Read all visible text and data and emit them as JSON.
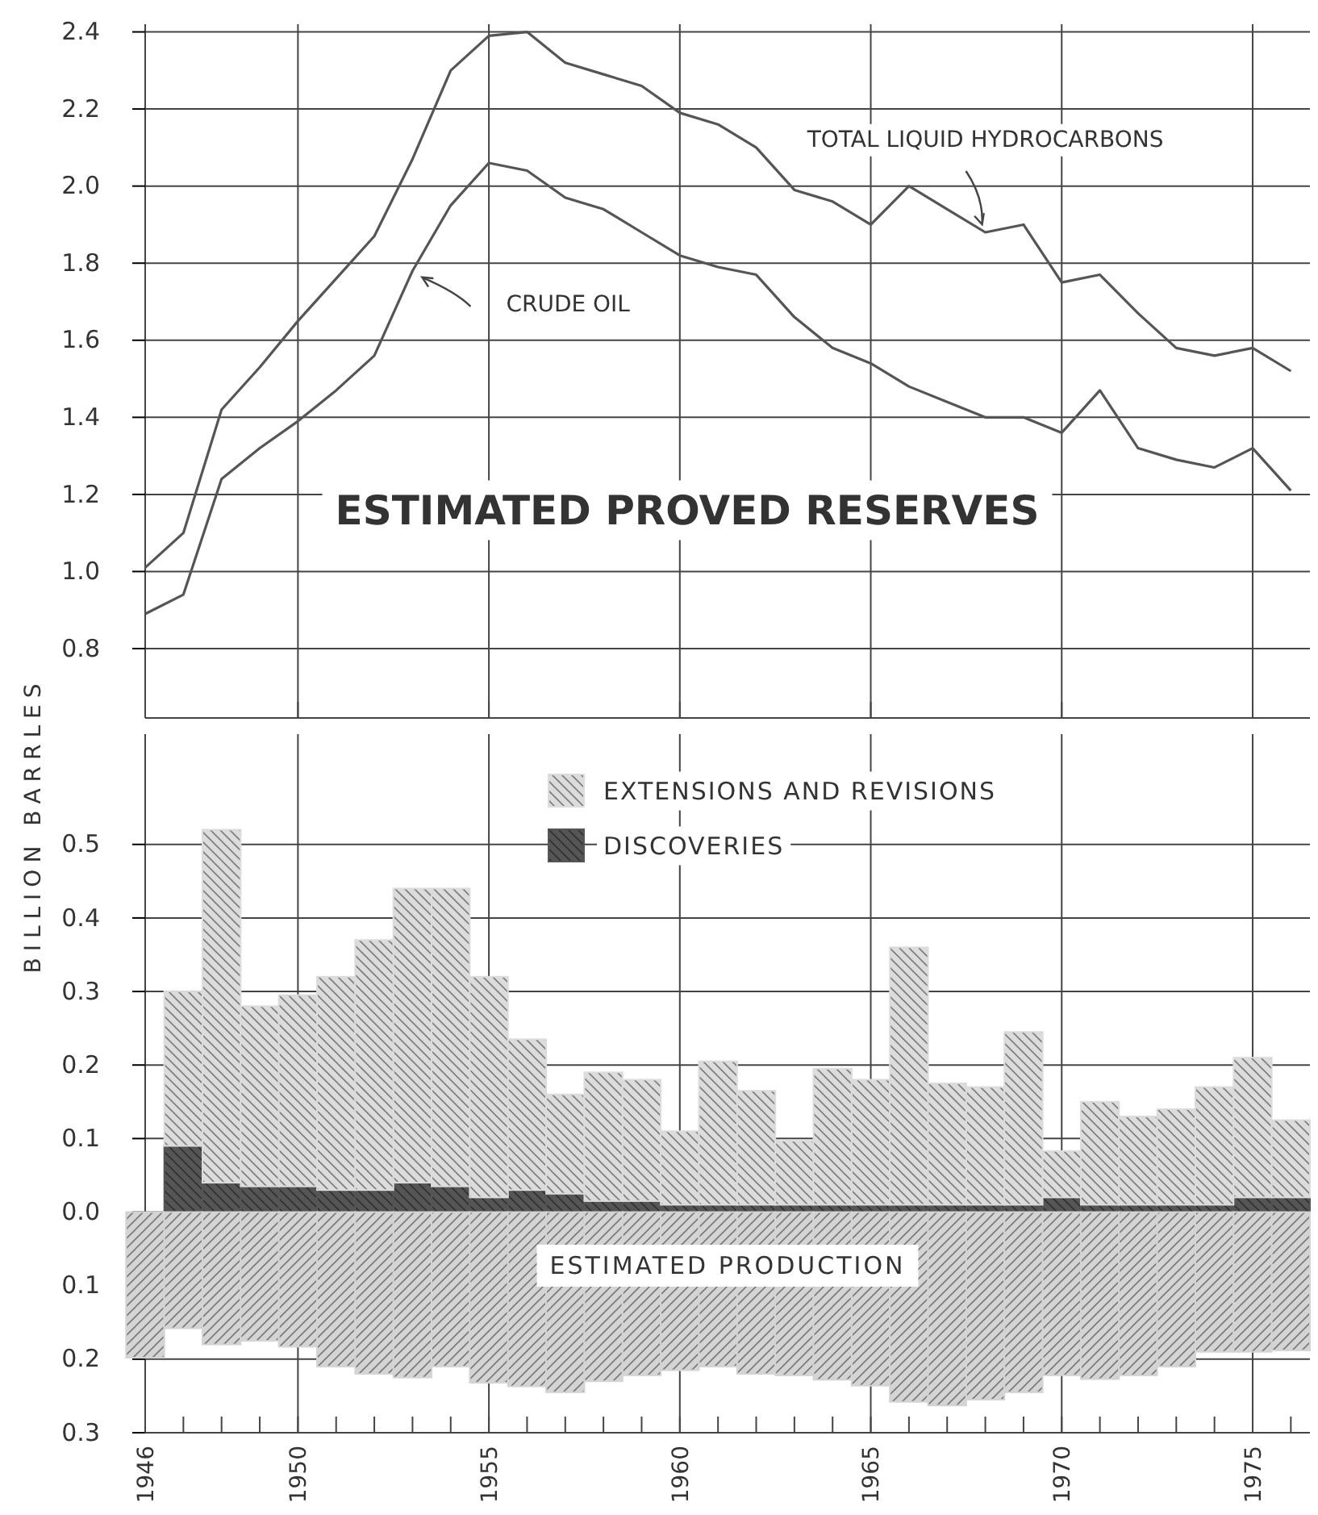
{
  "chart_data": [
    {
      "type": "line",
      "title": "ESTIMATED PROVED RESERVES",
      "ylabel": "BILLION BARRLES",
      "x": [
        1946,
        1947,
        1948,
        1949,
        1950,
        1951,
        1952,
        1953,
        1954,
        1955,
        1956,
        1957,
        1958,
        1959,
        1960,
        1961,
        1962,
        1963,
        1964,
        1965,
        1966,
        1967,
        1968,
        1969,
        1970,
        1971,
        1972,
        1973,
        1974,
        1975,
        1976
      ],
      "series": [
        {
          "name": "TOTAL LIQUID HYDROCARBONS",
          "color": "#555555",
          "values": [
            1.01,
            1.1,
            1.42,
            1.53,
            1.65,
            1.76,
            1.87,
            2.07,
            2.3,
            2.39,
            2.4,
            2.32,
            2.29,
            2.26,
            2.19,
            2.16,
            2.1,
            1.99,
            1.96,
            1.9,
            2.0,
            1.94,
            1.88,
            1.9,
            1.75,
            1.77,
            1.67,
            1.58,
            1.56,
            1.58,
            1.52
          ]
        },
        {
          "name": "CRUDE OIL",
          "color": "#555555",
          "values": [
            0.89,
            0.94,
            1.24,
            1.32,
            1.39,
            1.47,
            1.56,
            1.78,
            1.95,
            2.06,
            2.04,
            1.97,
            1.94,
            1.88,
            1.82,
            1.79,
            1.77,
            1.66,
            1.58,
            1.54,
            1.48,
            1.44,
            1.4,
            1.4,
            1.36,
            1.47,
            1.32,
            1.29,
            1.27,
            1.32,
            1.21
          ]
        }
      ],
      "xlim": [
        1946,
        1976.5
      ],
      "ylim": [
        0.62,
        2.42
      ],
      "xticks": [
        1946,
        1950,
        1955,
        1960,
        1965,
        1970,
        1975
      ],
      "yticks": [
        {
          "value": 0.8,
          "label": "0.8"
        },
        {
          "value": 1,
          "label": "1.0"
        },
        {
          "value": 1.2,
          "label": "1.2"
        },
        {
          "value": 1.4,
          "label": "1.4"
        },
        {
          "value": 1.6,
          "label": "1.6"
        },
        {
          "value": 1.8,
          "label": "1.8"
        },
        {
          "value": 2,
          "label": "2.0"
        },
        {
          "value": 2.2,
          "label": "2.2"
        },
        {
          "value": 2.4,
          "label": "2.4"
        }
      ],
      "grid": true,
      "tick_labels": "y"
    },
    {
      "type": "bar",
      "stacked": true,
      "legend": "top",
      "grid": true,
      "series": [
        {
          "name": "DISCOVERIES",
          "color": "#555555",
          "x": [
            1947,
            1948,
            1949,
            1950,
            1951,
            1952,
            1953,
            1954,
            1955,
            1956,
            1957,
            1958,
            1959,
            1960,
            1961,
            1962,
            1963,
            1964,
            1965,
            1966,
            1967,
            1968,
            1969,
            1970,
            1971,
            1972,
            1973,
            1974,
            1975,
            1976
          ],
          "values": [
            0.09,
            0.04,
            0.035,
            0.035,
            0.03,
            0.03,
            0.04,
            0.035,
            0.02,
            0.03,
            0.025,
            0.015,
            0.015,
            0.01,
            0.01,
            0.01,
            0.01,
            0.01,
            0.01,
            0.01,
            0.01,
            0.01,
            0.01,
            0.02,
            0.01,
            0.01,
            0.01,
            0.01,
            0.02,
            0.02
          ]
        },
        {
          "name": "EXTENSIONS AND REVISIONS",
          "color": "#dcdcdc",
          "x": [
            1947,
            1948,
            1949,
            1950,
            1951,
            1952,
            1953,
            1954,
            1955,
            1956,
            1957,
            1958,
            1959,
            1960,
            1961,
            1962,
            1963,
            1964,
            1965,
            1966,
            1967,
            1968,
            1969,
            1970,
            1971,
            1972,
            1973,
            1974,
            1975,
            1976
          ],
          "values": [
            0.21,
            0.48,
            0.245,
            0.26,
            0.29,
            0.34,
            0.4,
            0.405,
            0.3,
            0.205,
            0.135,
            0.175,
            0.165,
            0.1,
            0.195,
            0.155,
            0.087,
            0.185,
            0.17,
            0.35,
            0.165,
            0.16,
            0.235,
            0.063,
            0.14,
            0.12,
            0.13,
            0.16,
            0.19,
            0.105
          ]
        },
        {
          "name": "ESTIMATED PRODUCTION",
          "color": "#d4d4d4",
          "x": [
            1946,
            1947,
            1948,
            1949,
            1950,
            1951,
            1952,
            1953,
            1954,
            1955,
            1956,
            1957,
            1958,
            1959,
            1960,
            1961,
            1962,
            1963,
            1964,
            1965,
            1966,
            1967,
            1968,
            1969,
            1970,
            1971,
            1972,
            1973,
            1974,
            1975,
            1976
          ],
          "values": [
            -0.198,
            -0.158,
            -0.18,
            -0.175,
            -0.183,
            -0.21,
            -0.22,
            -0.225,
            -0.21,
            -0.232,
            -0.237,
            -0.245,
            -0.23,
            -0.222,
            -0.215,
            -0.21,
            -0.22,
            -0.222,
            -0.228,
            -0.236,
            -0.258,
            -0.263,
            -0.255,
            -0.245,
            -0.222,
            -0.227,
            -0.222,
            -0.21,
            -0.19,
            -0.19,
            -0.188
          ]
        }
      ],
      "xlim": [
        1946,
        1976.5
      ],
      "ylim": [
        -0.3,
        0.65
      ],
      "xticks": [
        1946,
        {
          "value": 1947,
          "label": null
        },
        {
          "value": 1948,
          "label": null
        },
        {
          "value": 1949,
          "label": null
        },
        1950,
        {
          "value": 1951,
          "label": null
        },
        {
          "value": 1952,
          "label": null
        },
        {
          "value": 1953,
          "label": null
        },
        {
          "value": 1954,
          "label": null
        },
        1955,
        {
          "value": 1956,
          "label": null
        },
        {
          "value": 1957,
          "label": null
        },
        {
          "value": 1958,
          "label": null
        },
        {
          "value": 1959,
          "label": null
        },
        1960,
        {
          "value": 1961,
          "label": null
        },
        {
          "value": 1962,
          "label": null
        },
        {
          "value": 1963,
          "label": null
        },
        {
          "value": 1964,
          "label": null
        },
        1965,
        {
          "value": 1966,
          "label": null
        },
        {
          "value": 1967,
          "label": null
        },
        {
          "value": 1968,
          "label": null
        },
        {
          "value": 1969,
          "label": null
        },
        1970,
        {
          "value": 1971,
          "label": null
        },
        {
          "value": 1972,
          "label": null
        },
        {
          "value": 1973,
          "label": null
        },
        {
          "value": 1974,
          "label": null
        },
        1975,
        {
          "value": 1976,
          "label": null
        }
      ],
      "yticks": [
        {
          "value": -0.3,
          "label": "0.3"
        },
        {
          "value": -0.2,
          "label": "0.2"
        },
        {
          "value": -0.1,
          "label": "0.1"
        },
        {
          "value": 0,
          "label": "0.0"
        },
        {
          "value": 0.1,
          "label": "0.1"
        },
        {
          "value": 0.2,
          "label": "0.2"
        },
        {
          "value": 0.3,
          "label": "0.3"
        },
        {
          "value": 0.4,
          "label": "0.4"
        },
        {
          "value": 0.5,
          "label": "0.5"
        }
      ]
    }
  ]
}
